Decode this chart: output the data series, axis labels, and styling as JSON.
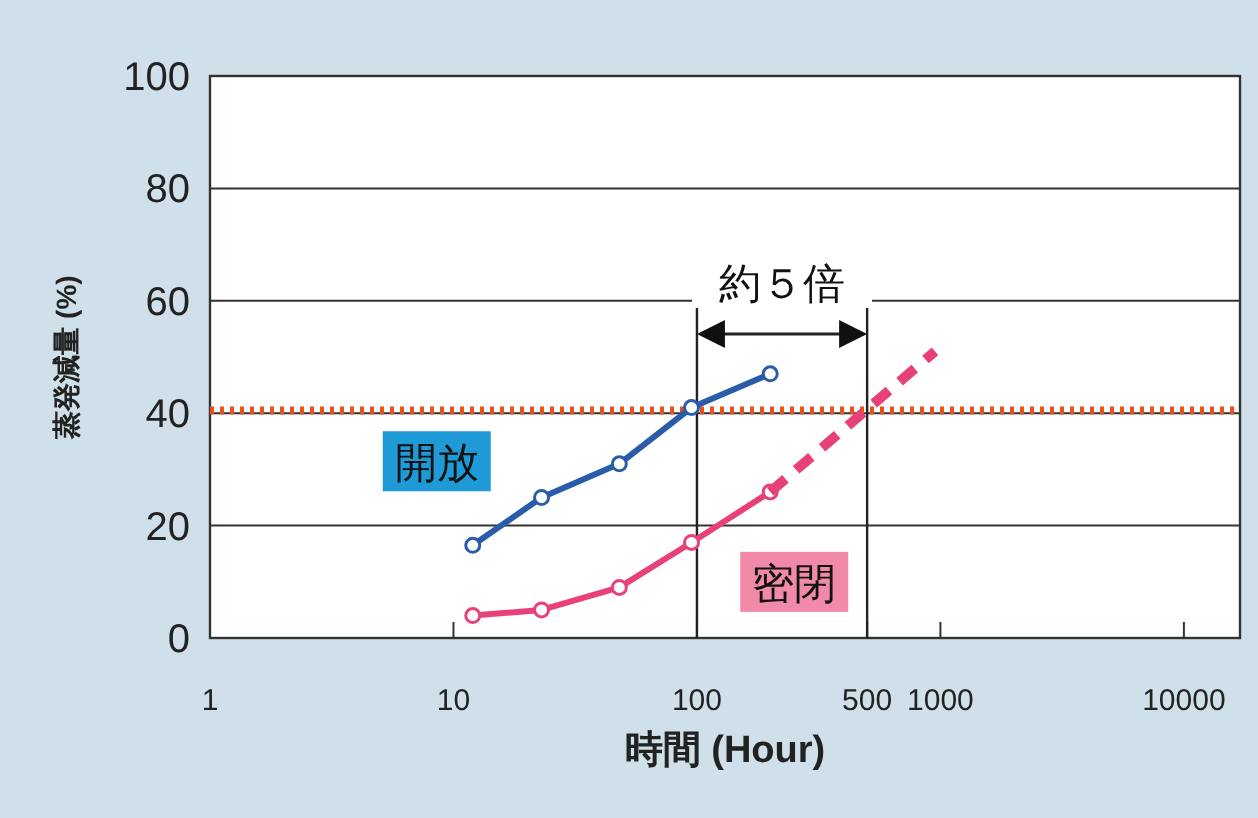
{
  "chart_data": {
    "type": "line",
    "xlabel": "時間 (Hour)",
    "ylabel": "蒸発減量 (%)",
    "log": "x",
    "xlim": [
      1,
      17000
    ],
    "xticks": [
      1,
      10,
      100,
      500,
      1000,
      10000
    ],
    "ylim": [
      0,
      100
    ],
    "yticks": [
      0,
      20,
      40,
      60,
      80,
      100
    ],
    "grid": "y",
    "legend": false,
    "marker": "circle",
    "series": [
      {
        "name": "開放",
        "color": "#2a5caa",
        "x": [
          12,
          23,
          48,
          95,
          200
        ],
        "values": [
          16.5,
          25,
          31,
          41,
          47
        ]
      },
      {
        "name": "密閉",
        "color": "#e8417a",
        "x": [
          12,
          23,
          48,
          95,
          200
        ],
        "values": [
          4,
          5,
          9,
          17,
          26
        ]
      },
      {
        "color": "#e8417a",
        "line_style": "dashed",
        "marker": "none",
        "x": [
          200,
          950
        ],
        "values": [
          26,
          51
        ]
      }
    ],
    "ref_lines": [
      {
        "axis": "y",
        "value": 40.5,
        "color": "#e8501e",
        "line_style": "dotted"
      }
    ],
    "annotations": [
      "約５倍"
    ]
  }
}
